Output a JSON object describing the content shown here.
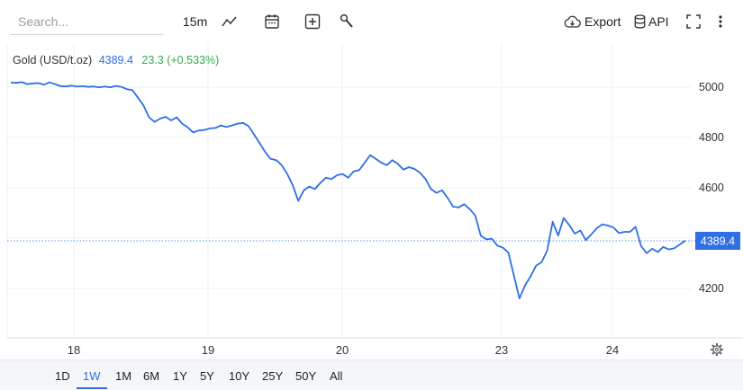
{
  "toolbar": {
    "search_placeholder": "Search...",
    "interval": "15m",
    "export_label": "Export",
    "api_label": "API",
    "icons": [
      "line-chart-icon",
      "calendar-icon",
      "plus-box-icon",
      "wrench-icon",
      "cloud-download-icon",
      "database-icon",
      "fullscreen-icon",
      "more-vertical-icon"
    ]
  },
  "legend": {
    "name": "Gold (USD/t.oz)",
    "price": "4389.4",
    "change": "23.3 (+0.533%)"
  },
  "colors": {
    "line": "#2f6fe4",
    "positive": "#2fae4f",
    "price_tag": "#2f6fe4"
  },
  "chart_data": {
    "type": "line",
    "title": "Gold (USD/t.oz)",
    "xlabel": "",
    "ylabel": "",
    "x_ticks": [
      "18",
      "19",
      "20",
      "23",
      "24"
    ],
    "y_ticks": [
      4200,
      4400,
      4600,
      4800,
      5000
    ],
    "y_tick_labels": [
      "4200",
      "4400",
      "4600",
      "4800",
      "5000"
    ],
    "ylim": [
      4040,
      5060
    ],
    "grid": true,
    "last_price_label": "4389.4",
    "series": [
      {
        "name": "Gold (USD/t.oz)",
        "x_unit": "trading day index (0 = start of day 17 session visible, tick 18 at 0.45)",
        "points": [
          [
            0.0,
            5018
          ],
          [
            0.05,
            5017
          ],
          [
            0.1,
            5020
          ],
          [
            0.15,
            5012
          ],
          [
            0.2,
            5015
          ],
          [
            0.25,
            5016
          ],
          [
            0.3,
            5010
          ],
          [
            0.35,
            5019
          ],
          [
            0.4,
            5012
          ],
          [
            0.45,
            5004
          ],
          [
            0.5,
            5003
          ],
          [
            0.55,
            5006
          ],
          [
            0.6,
            5002
          ],
          [
            0.65,
            5004
          ],
          [
            0.7,
            5001
          ],
          [
            0.75,
            5003
          ],
          [
            0.8,
            4999
          ],
          [
            0.85,
            5003
          ],
          [
            0.9,
            4999
          ],
          [
            0.95,
            5005
          ],
          [
            1.0,
            5001
          ],
          [
            1.05,
            4992
          ],
          [
            1.1,
            4988
          ],
          [
            1.15,
            4958
          ],
          [
            1.2,
            4928
          ],
          [
            1.25,
            4880
          ],
          [
            1.3,
            4862
          ],
          [
            1.35,
            4875
          ],
          [
            1.4,
            4882
          ],
          [
            1.45,
            4868
          ],
          [
            1.5,
            4880
          ],
          [
            1.55,
            4855
          ],
          [
            1.6,
            4840
          ],
          [
            1.65,
            4820
          ],
          [
            1.7,
            4828
          ],
          [
            1.75,
            4830
          ],
          [
            1.8,
            4836
          ],
          [
            1.85,
            4838
          ],
          [
            1.9,
            4848
          ],
          [
            1.95,
            4842
          ],
          [
            2.0,
            4848
          ],
          [
            2.05,
            4855
          ],
          [
            2.1,
            4858
          ],
          [
            2.15,
            4845
          ],
          [
            2.2,
            4812
          ],
          [
            2.25,
            4778
          ],
          [
            2.3,
            4742
          ],
          [
            2.35,
            4715
          ],
          [
            2.4,
            4710
          ],
          [
            2.45,
            4690
          ],
          [
            2.5,
            4655
          ],
          [
            2.55,
            4610
          ],
          [
            2.6,
            4548
          ],
          [
            2.65,
            4590
          ],
          [
            2.7,
            4605
          ],
          [
            2.75,
            4595
          ],
          [
            2.8,
            4620
          ],
          [
            2.85,
            4640
          ],
          [
            2.9,
            4635
          ],
          [
            2.95,
            4650
          ],
          [
            3.0,
            4655
          ],
          [
            3.05,
            4640
          ],
          [
            3.1,
            4665
          ],
          [
            3.15,
            4670
          ],
          [
            3.2,
            4700
          ],
          [
            3.25,
            4730
          ],
          [
            3.3,
            4715
          ],
          [
            3.35,
            4700
          ],
          [
            3.4,
            4690
          ],
          [
            3.45,
            4710
          ],
          [
            3.5,
            4695
          ],
          [
            3.55,
            4672
          ],
          [
            3.6,
            4682
          ],
          [
            3.65,
            4675
          ],
          [
            3.7,
            4660
          ],
          [
            3.75,
            4635
          ],
          [
            3.8,
            4595
          ],
          [
            3.85,
            4580
          ],
          [
            3.9,
            4590
          ],
          [
            3.95,
            4560
          ],
          [
            4.0,
            4525
          ],
          [
            4.05,
            4522
          ],
          [
            4.1,
            4535
          ],
          [
            4.15,
            4515
          ],
          [
            4.2,
            4490
          ],
          [
            4.25,
            4410
          ],
          [
            4.3,
            4395
          ],
          [
            4.35,
            4398
          ],
          [
            4.4,
            4370
          ],
          [
            4.45,
            4362
          ],
          [
            4.5,
            4342
          ],
          [
            4.55,
            4250
          ],
          [
            4.6,
            4160
          ],
          [
            4.65,
            4212
          ],
          [
            4.7,
            4248
          ],
          [
            4.75,
            4290
          ],
          [
            4.8,
            4305
          ],
          [
            4.85,
            4350
          ],
          [
            4.9,
            4465
          ],
          [
            4.95,
            4410
          ],
          [
            5.0,
            4480
          ],
          [
            5.05,
            4452
          ],
          [
            5.1,
            4418
          ],
          [
            5.15,
            4430
          ],
          [
            5.2,
            4392
          ],
          [
            5.25,
            4415
          ],
          [
            5.3,
            4440
          ],
          [
            5.35,
            4455
          ],
          [
            5.4,
            4450
          ],
          [
            5.45,
            4442
          ],
          [
            5.5,
            4420
          ],
          [
            5.55,
            4425
          ],
          [
            5.6,
            4425
          ],
          [
            5.65,
            4445
          ],
          [
            5.7,
            4368
          ],
          [
            5.75,
            4340
          ],
          [
            5.8,
            4358
          ],
          [
            5.85,
            4345
          ],
          [
            5.9,
            4365
          ],
          [
            5.95,
            4355
          ],
          [
            6.0,
            4360
          ],
          [
            6.05,
            4375
          ],
          [
            6.1,
            4390
          ]
        ]
      }
    ]
  },
  "ranges": [
    "1D",
    "1W",
    "1M",
    "6M",
    "1Y",
    "5Y",
    "10Y",
    "25Y",
    "50Y",
    "All"
  ],
  "active_range": "1W"
}
